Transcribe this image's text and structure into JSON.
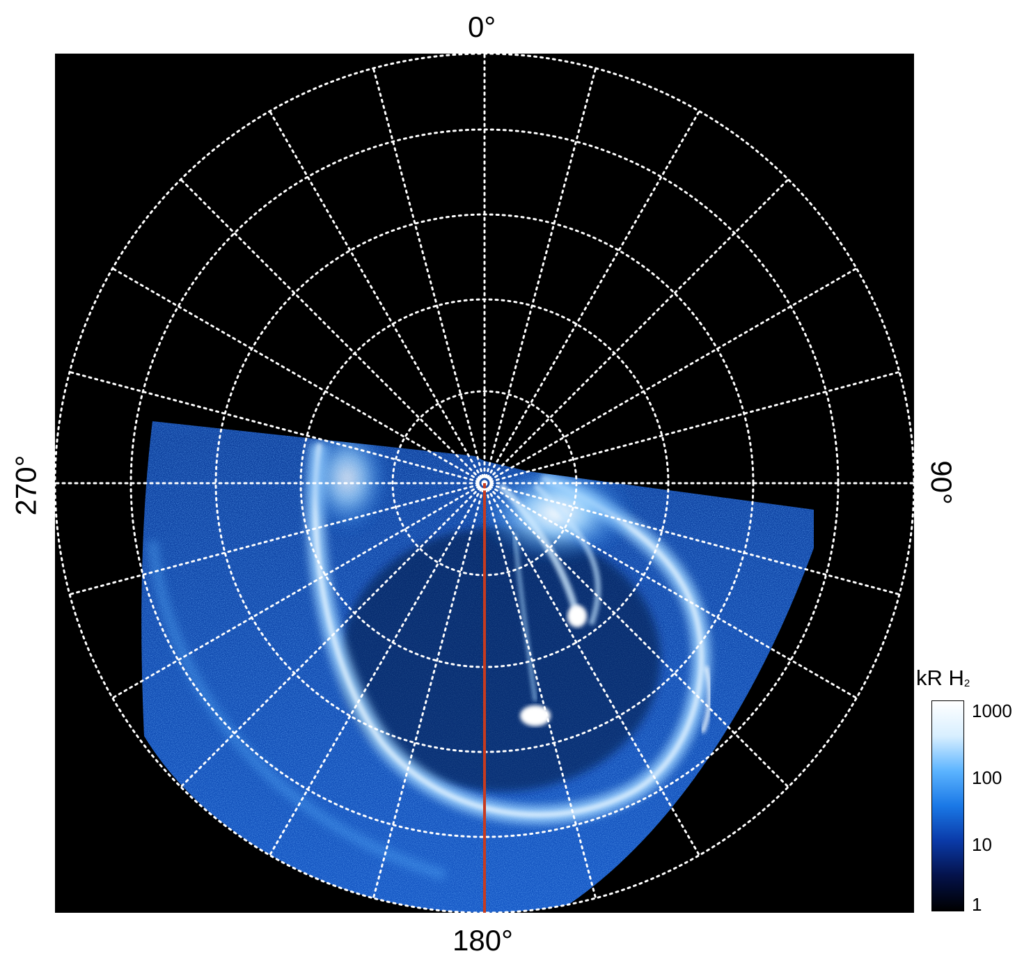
{
  "labels": {
    "top": "0°",
    "bottom": "180°",
    "left": "270°",
    "right": "90°"
  },
  "colorbar": {
    "unit_main": "kR H",
    "unit_sub": "2",
    "ticks": [
      "1000",
      "100",
      "10",
      "1"
    ],
    "colors": [
      "#000000",
      "#04124a",
      "#0a3aa8",
      "#1a78e6",
      "#5cb4ff",
      "#d8efff",
      "#ffffff"
    ]
  },
  "colors": {
    "background": "#000000",
    "grid": "#ffffff",
    "meridian": "#c83b1e"
  }
}
